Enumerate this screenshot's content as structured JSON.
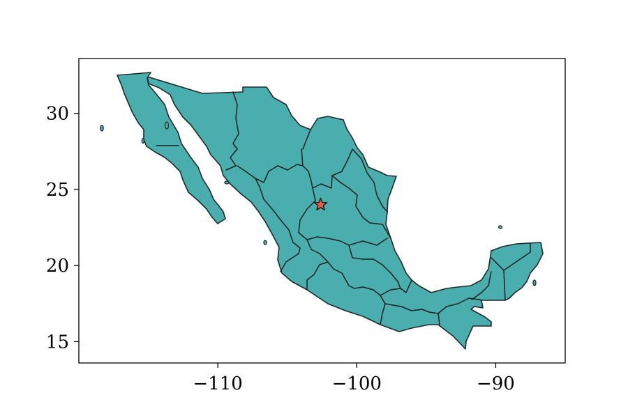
{
  "colors": {
    "land_fill": "#4aaeae",
    "outline": "#1e2a2a",
    "marker_fill": "#e8604a",
    "marker_stroke": "#111111",
    "frame": "#000000"
  },
  "map": {
    "type": "map",
    "projection": "plate-carree",
    "xlim": [
      -120,
      -85
    ],
    "ylim": [
      13.6,
      33.6
    ],
    "grid": false,
    "x_ticks": [
      {
        "value": -110,
        "label": "−110"
      },
      {
        "value": -100,
        "label": "−100"
      },
      {
        "value": -90,
        "label": "−90"
      }
    ],
    "y_ticks": [
      {
        "value": 15,
        "label": "15"
      },
      {
        "value": 20,
        "label": "20"
      },
      {
        "value": 25,
        "label": "25"
      },
      {
        "value": 30,
        "label": "30"
      }
    ],
    "marker": {
      "shape": "star",
      "lon": -102.6,
      "lat": 24.0
    }
  }
}
